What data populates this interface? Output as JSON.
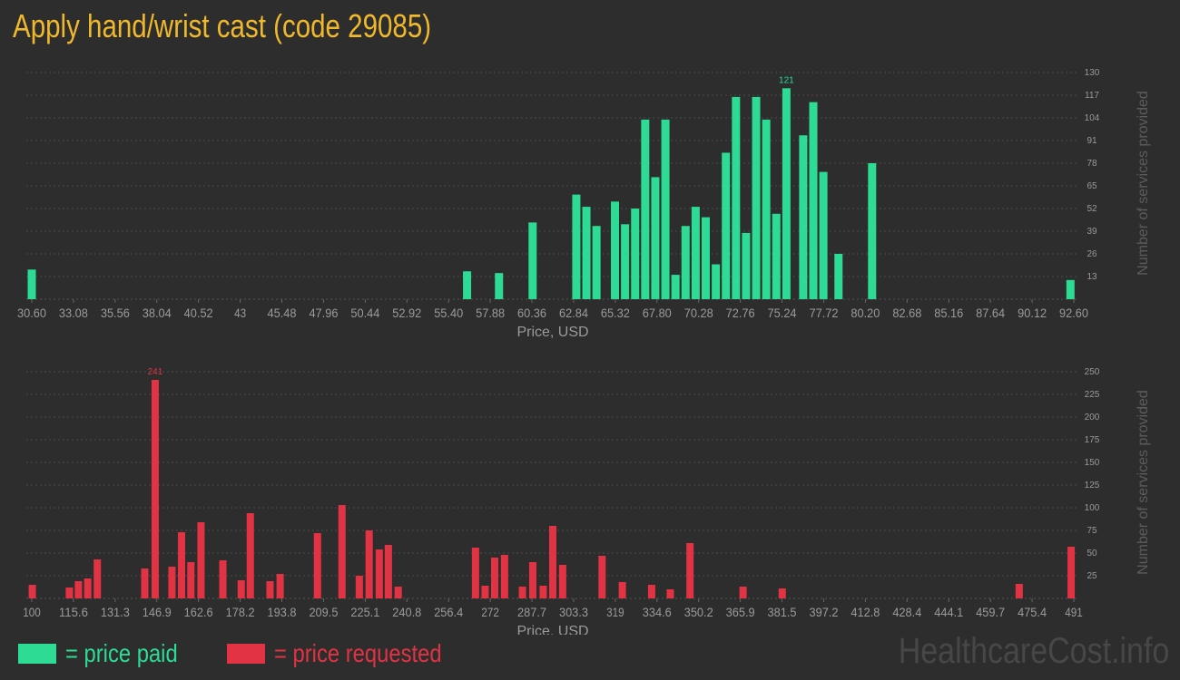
{
  "title": "Apply hand/wrist cast (code 29085)",
  "colors": {
    "paid": "#2ddb95",
    "requested": "#e13344",
    "title": "#f0b82d",
    "axis_text": "#9a9a9a",
    "grid": "#4a4a4a"
  },
  "legend": {
    "paid": "= price paid",
    "requested": "= price requested"
  },
  "watermark": "HealthcareCost.info",
  "chart_data": [
    {
      "type": "bar",
      "series_name": "price paid",
      "xlabel": "Price, USD",
      "ylabel": "Number of services provided",
      "xlim": [
        30.6,
        92.6
      ],
      "ylim": [
        0,
        130
      ],
      "x_ticks": [
        "30.60",
        "33.08",
        "35.56",
        "38.04",
        "40.52",
        "43",
        "45.48",
        "47.96",
        "50.44",
        "52.92",
        "55.40",
        "57.88",
        "60.36",
        "62.84",
        "65.32",
        "67.80",
        "70.28",
        "72.76",
        "75.24",
        "77.72",
        "80.20",
        "82.68",
        "85.16",
        "87.64",
        "90.12",
        "92.60"
      ],
      "y_ticks": [
        "13",
        "26",
        "39",
        "52",
        "65",
        "78",
        "91",
        "104",
        "117",
        "130"
      ],
      "peak_label": "121",
      "x": [
        30.6,
        56.5,
        58.4,
        60.4,
        63.0,
        63.6,
        64.2,
        65.3,
        65.9,
        66.5,
        67.1,
        67.7,
        68.3,
        68.9,
        69.5,
        70.1,
        70.7,
        71.3,
        71.9,
        72.5,
        73.1,
        73.7,
        74.3,
        74.9,
        75.5,
        76.5,
        77.1,
        77.7,
        78.6,
        80.6,
        92.4
      ],
      "values": [
        17,
        16,
        15,
        44,
        60,
        53,
        42,
        56,
        43,
        52,
        103,
        70,
        103,
        14,
        42,
        53,
        47,
        20,
        84,
        116,
        38,
        116,
        103,
        49,
        121,
        94,
        113,
        73,
        26,
        78,
        11
      ]
    },
    {
      "type": "bar",
      "series_name": "price requested",
      "xlabel": "Price, USD",
      "ylabel": "Number of services provided",
      "xlim": [
        100,
        491
      ],
      "ylim": [
        0,
        250
      ],
      "x_ticks": [
        "100",
        "115.6",
        "131.3",
        "146.9",
        "162.6",
        "178.2",
        "193.8",
        "209.5",
        "225.1",
        "240.8",
        "256.4",
        "272",
        "287.7",
        "303.3",
        "319",
        "334.6",
        "350.2",
        "365.9",
        "381.5",
        "397.2",
        "412.8",
        "428.4",
        "444.1",
        "459.7",
        "475.4",
        "491"
      ],
      "y_ticks": [
        "25",
        "50",
        "75",
        "100",
        "125",
        "150",
        "175",
        "200",
        "225",
        "250"
      ],
      "peak_label": "241",
      "x": [
        100.2,
        114.1,
        117.5,
        121.0,
        124.6,
        142.4,
        146.3,
        152.6,
        156.2,
        159.7,
        163.5,
        171.7,
        178.6,
        182.0,
        189.4,
        193.2,
        207.2,
        216.4,
        222.9,
        226.6,
        230.4,
        233.8,
        237.5,
        266.5,
        270.1,
        273.7,
        277.4,
        284.1,
        288.0,
        291.9,
        295.5,
        299.2,
        314.0,
        321.6,
        332.6,
        339.6,
        347.0,
        366.9,
        381.6,
        470.5,
        490.0
      ],
      "values": [
        15,
        12,
        19,
        22,
        43,
        33,
        241,
        35,
        73,
        40,
        84,
        42,
        20,
        94,
        19,
        27,
        72,
        103,
        25,
        75,
        54,
        59,
        13,
        56,
        14,
        45,
        48,
        13,
        40,
        14,
        80,
        37,
        47,
        18,
        15,
        10,
        61,
        13,
        11,
        16,
        57
      ]
    }
  ]
}
